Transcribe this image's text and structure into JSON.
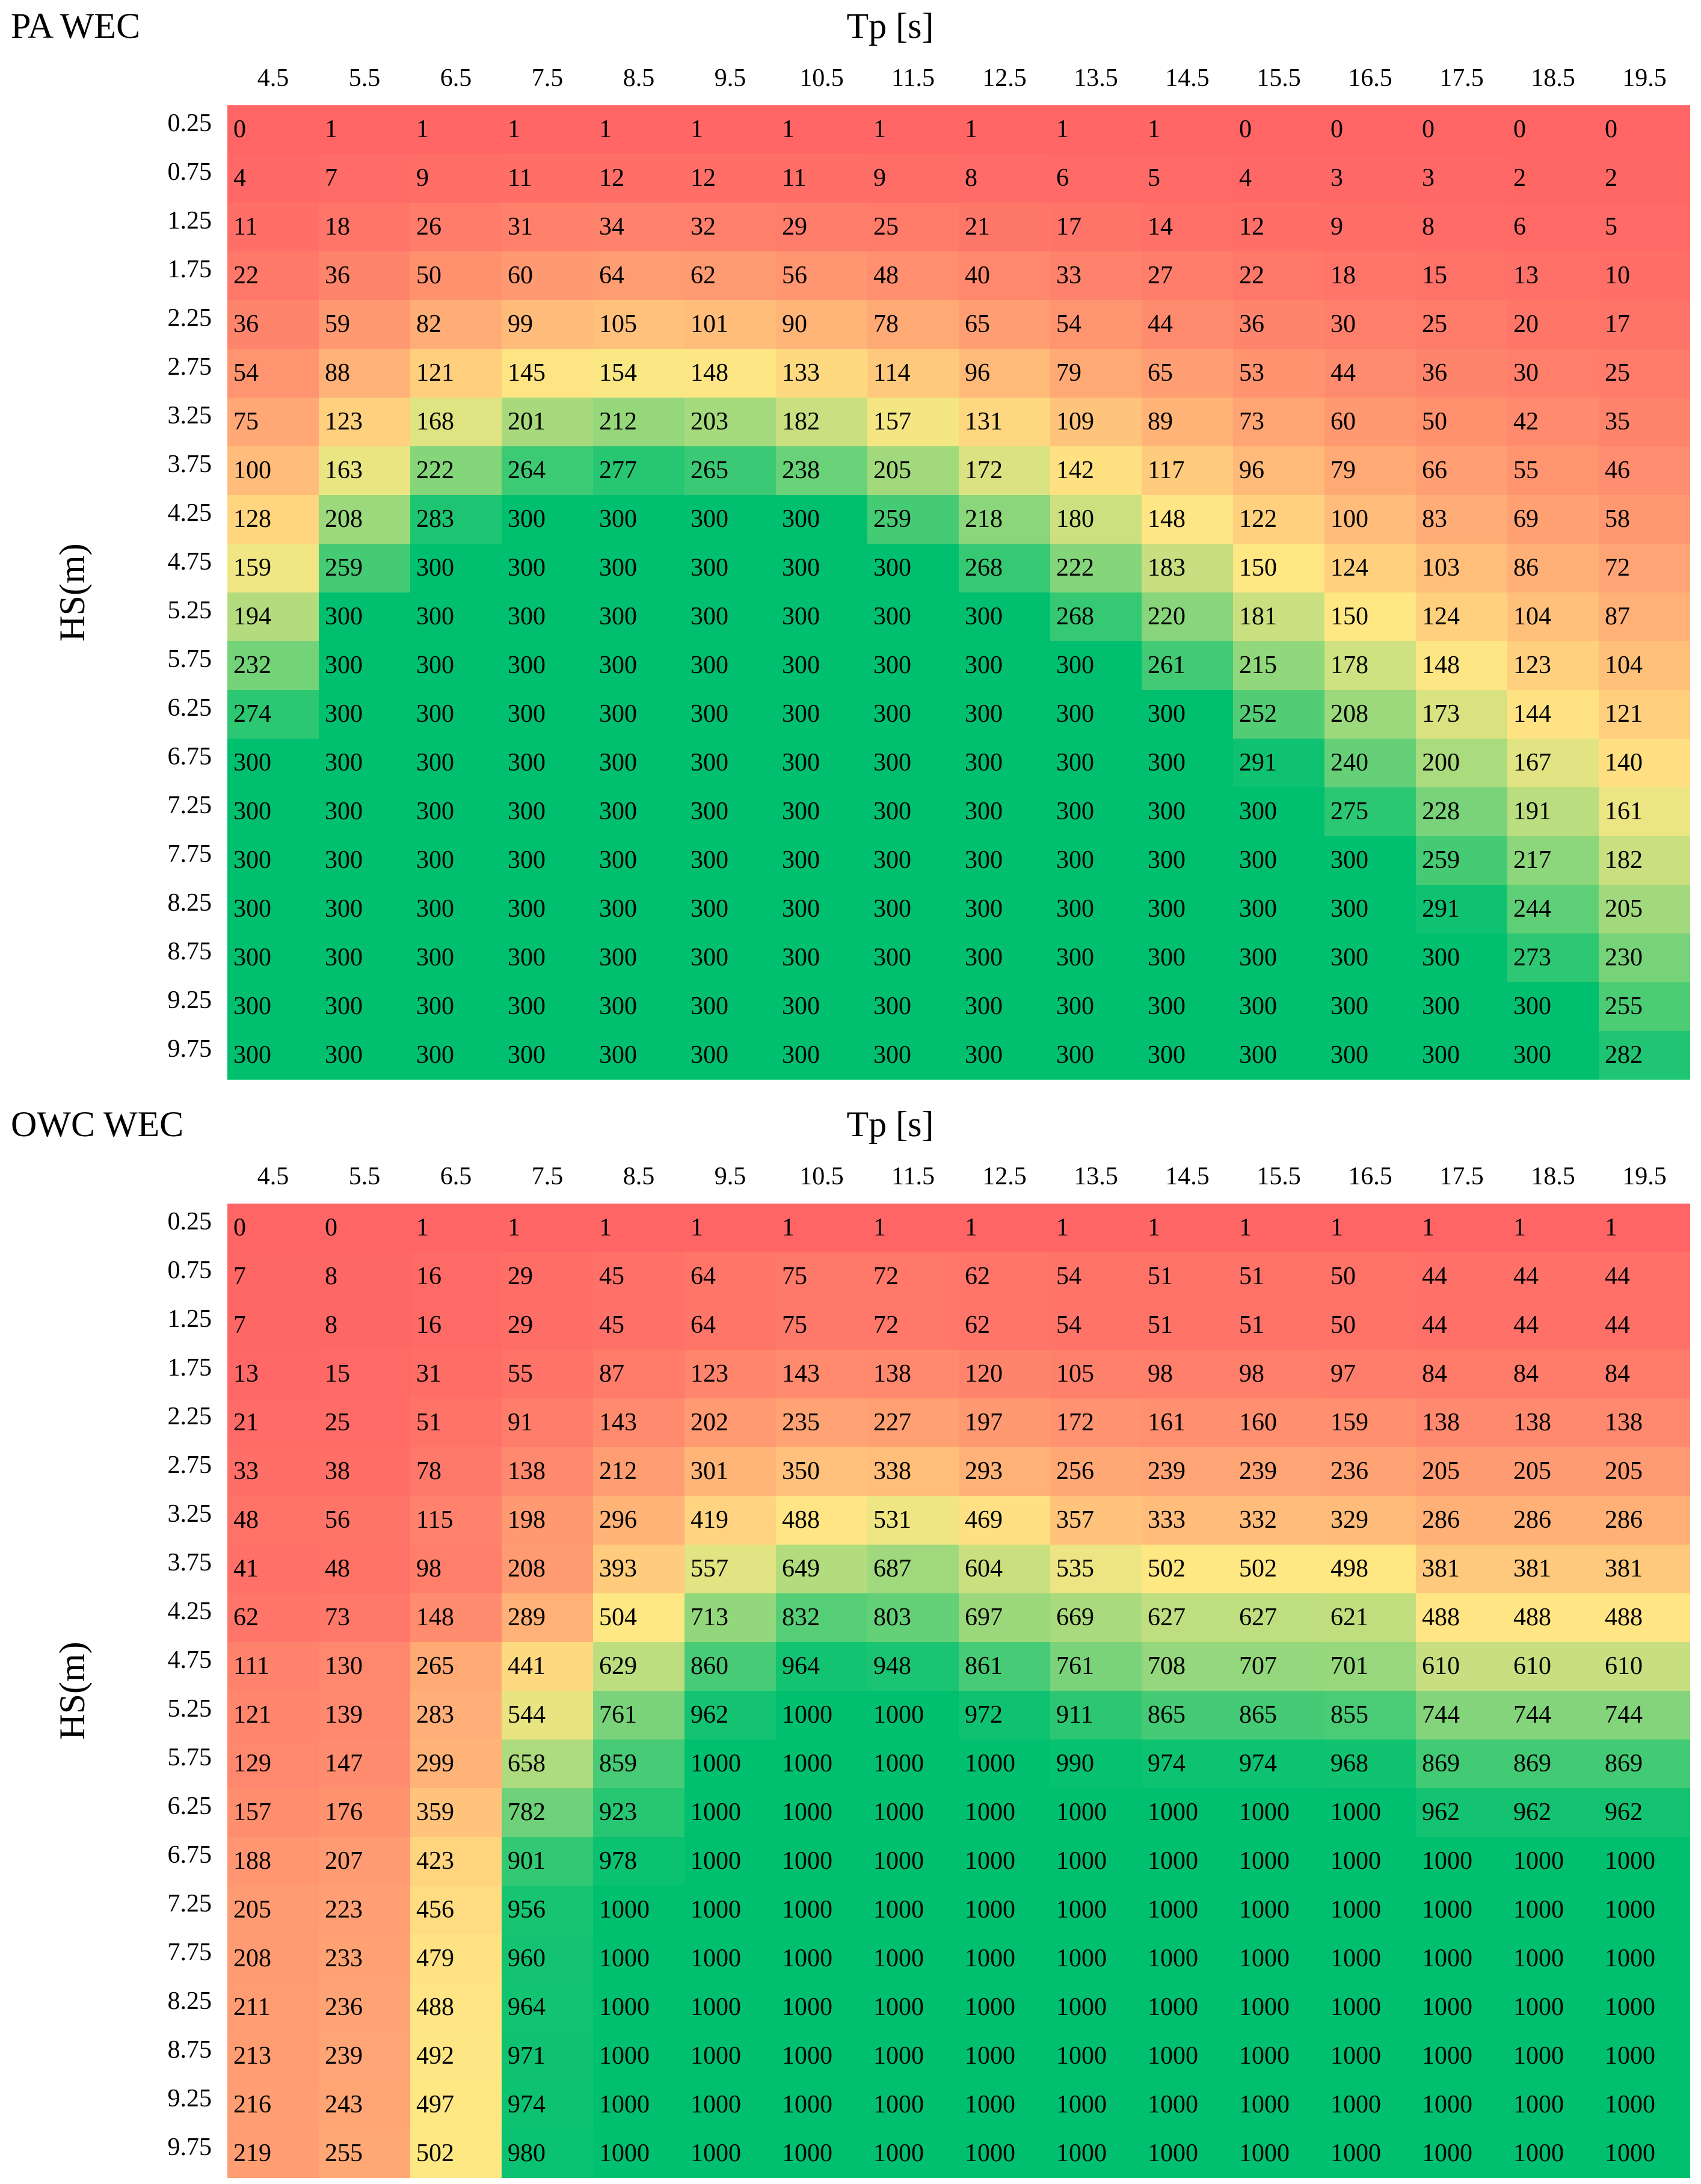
{
  "chart_data": [
    {
      "type": "heatmap",
      "title": "PA WEC",
      "xlabel": "Tp [s]",
      "ylabel": "HS(m)",
      "x": [
        "4.5",
        "5.5",
        "6.5",
        "7.5",
        "8.5",
        "9.5",
        "10.5",
        "11.5",
        "12.5",
        "13.5",
        "14.5",
        "15.5",
        "16.5",
        "17.5",
        "18.5",
        "19.5"
      ],
      "y": [
        "0.25",
        "0.75",
        "1.25",
        "1.75",
        "2.25",
        "2.75",
        "3.25",
        "3.75",
        "4.25",
        "4.75",
        "5.25",
        "5.75",
        "6.25",
        "6.75",
        "7.25",
        "7.75",
        "8.25",
        "8.75",
        "9.25",
        "9.75"
      ],
      "max_value": 300,
      "values": [
        [
          0,
          1,
          1,
          1,
          1,
          1,
          1,
          1,
          1,
          1,
          1,
          0,
          0,
          0,
          0,
          0
        ],
        [
          4,
          7,
          9,
          11,
          12,
          12,
          11,
          9,
          8,
          6,
          5,
          4,
          3,
          3,
          2,
          2
        ],
        [
          11,
          18,
          26,
          31,
          34,
          32,
          29,
          25,
          21,
          17,
          14,
          12,
          9,
          8,
          6,
          5
        ],
        [
          22,
          36,
          50,
          60,
          64,
          62,
          56,
          48,
          40,
          33,
          27,
          22,
          18,
          15,
          13,
          10
        ],
        [
          36,
          59,
          82,
          99,
          105,
          101,
          90,
          78,
          65,
          54,
          44,
          36,
          30,
          25,
          20,
          17
        ],
        [
          54,
          88,
          121,
          145,
          154,
          148,
          133,
          114,
          96,
          79,
          65,
          53,
          44,
          36,
          30,
          25
        ],
        [
          75,
          123,
          168,
          201,
          212,
          203,
          182,
          157,
          131,
          109,
          89,
          73,
          60,
          50,
          42,
          35
        ],
        [
          100,
          163,
          222,
          264,
          277,
          265,
          238,
          205,
          172,
          142,
          117,
          96,
          79,
          66,
          55,
          46
        ],
        [
          128,
          208,
          283,
          300,
          300,
          300,
          300,
          259,
          218,
          180,
          148,
          122,
          100,
          83,
          69,
          58
        ],
        [
          159,
          259,
          300,
          300,
          300,
          300,
          300,
          300,
          268,
          222,
          183,
          150,
          124,
          103,
          86,
          72
        ],
        [
          194,
          300,
          300,
          300,
          300,
          300,
          300,
          300,
          300,
          268,
          220,
          181,
          150,
          124,
          104,
          87
        ],
        [
          232,
          300,
          300,
          300,
          300,
          300,
          300,
          300,
          300,
          300,
          261,
          215,
          178,
          148,
          123,
          104
        ],
        [
          274,
          300,
          300,
          300,
          300,
          300,
          300,
          300,
          300,
          300,
          300,
          252,
          208,
          173,
          144,
          121
        ],
        [
          300,
          300,
          300,
          300,
          300,
          300,
          300,
          300,
          300,
          300,
          300,
          291,
          240,
          200,
          167,
          140
        ],
        [
          300,
          300,
          300,
          300,
          300,
          300,
          300,
          300,
          300,
          300,
          300,
          300,
          275,
          228,
          191,
          161
        ],
        [
          300,
          300,
          300,
          300,
          300,
          300,
          300,
          300,
          300,
          300,
          300,
          300,
          300,
          259,
          217,
          182
        ],
        [
          300,
          300,
          300,
          300,
          300,
          300,
          300,
          300,
          300,
          300,
          300,
          300,
          300,
          291,
          244,
          205
        ],
        [
          300,
          300,
          300,
          300,
          300,
          300,
          300,
          300,
          300,
          300,
          300,
          300,
          300,
          300,
          273,
          230
        ],
        [
          300,
          300,
          300,
          300,
          300,
          300,
          300,
          300,
          300,
          300,
          300,
          300,
          300,
          300,
          300,
          255
        ],
        [
          300,
          300,
          300,
          300,
          300,
          300,
          300,
          300,
          300,
          300,
          300,
          300,
          300,
          300,
          300,
          282
        ]
      ]
    },
    {
      "type": "heatmap",
      "title": "OWC WEC",
      "xlabel": "Tp [s]",
      "ylabel": "HS(m)",
      "x": [
        "4.5",
        "5.5",
        "6.5",
        "7.5",
        "8.5",
        "9.5",
        "10.5",
        "11.5",
        "12.5",
        "13.5",
        "14.5",
        "15.5",
        "16.5",
        "17.5",
        "18.5",
        "19.5"
      ],
      "y": [
        "0.25",
        "0.75",
        "1.25",
        "1.75",
        "2.25",
        "2.75",
        "3.25",
        "3.75",
        "4.25",
        "4.75",
        "5.25",
        "5.75",
        "6.25",
        "6.75",
        "7.25",
        "7.75",
        "8.25",
        "8.75",
        "9.25",
        "9.75"
      ],
      "max_value": 1000,
      "values": [
        [
          0,
          0,
          1,
          1,
          1,
          1,
          1,
          1,
          1,
          1,
          1,
          1,
          1,
          1,
          1,
          1
        ],
        [
          7,
          8,
          16,
          29,
          45,
          64,
          75,
          72,
          62,
          54,
          51,
          51,
          50,
          44,
          44,
          44
        ],
        [
          7,
          8,
          16,
          29,
          45,
          64,
          75,
          72,
          62,
          54,
          51,
          51,
          50,
          44,
          44,
          44
        ],
        [
          13,
          15,
          31,
          55,
          87,
          123,
          143,
          138,
          120,
          105,
          98,
          98,
          97,
          84,
          84,
          84
        ],
        [
          21,
          25,
          51,
          91,
          143,
          202,
          235,
          227,
          197,
          172,
          161,
          160,
          159,
          138,
          138,
          138
        ],
        [
          33,
          38,
          78,
          138,
          212,
          301,
          350,
          338,
          293,
          256,
          239,
          239,
          236,
          205,
          205,
          205
        ],
        [
          48,
          56,
          115,
          198,
          296,
          419,
          488,
          531,
          469,
          357,
          333,
          332,
          329,
          286,
          286,
          286
        ],
        [
          41,
          48,
          98,
          208,
          393,
          557,
          649,
          687,
          604,
          535,
          502,
          502,
          498,
          381,
          381,
          381
        ],
        [
          62,
          73,
          148,
          289,
          504,
          713,
          832,
          803,
          697,
          669,
          627,
          627,
          621,
          488,
          488,
          488
        ],
        [
          111,
          130,
          265,
          441,
          629,
          860,
          964,
          948,
          861,
          761,
          708,
          707,
          701,
          610,
          610,
          610
        ],
        [
          121,
          139,
          283,
          544,
          761,
          962,
          1000,
          1000,
          972,
          911,
          865,
          865,
          855,
          744,
          744,
          744
        ],
        [
          129,
          147,
          299,
          658,
          859,
          1000,
          1000,
          1000,
          1000,
          990,
          974,
          974,
          968,
          869,
          869,
          869
        ],
        [
          157,
          176,
          359,
          782,
          923,
          1000,
          1000,
          1000,
          1000,
          1000,
          1000,
          1000,
          1000,
          962,
          962,
          962
        ],
        [
          188,
          207,
          423,
          901,
          978,
          1000,
          1000,
          1000,
          1000,
          1000,
          1000,
          1000,
          1000,
          1000,
          1000,
          1000
        ],
        [
          205,
          223,
          456,
          956,
          1000,
          1000,
          1000,
          1000,
          1000,
          1000,
          1000,
          1000,
          1000,
          1000,
          1000,
          1000
        ],
        [
          208,
          233,
          479,
          960,
          1000,
          1000,
          1000,
          1000,
          1000,
          1000,
          1000,
          1000,
          1000,
          1000,
          1000,
          1000
        ],
        [
          211,
          236,
          488,
          964,
          1000,
          1000,
          1000,
          1000,
          1000,
          1000,
          1000,
          1000,
          1000,
          1000,
          1000,
          1000
        ],
        [
          213,
          239,
          492,
          971,
          1000,
          1000,
          1000,
          1000,
          1000,
          1000,
          1000,
          1000,
          1000,
          1000,
          1000,
          1000
        ],
        [
          216,
          243,
          497,
          974,
          1000,
          1000,
          1000,
          1000,
          1000,
          1000,
          1000,
          1000,
          1000,
          1000,
          1000,
          1000
        ],
        [
          219,
          255,
          502,
          980,
          1000,
          1000,
          1000,
          1000,
          1000,
          1000,
          1000,
          1000,
          1000,
          1000,
          1000,
          1000
        ]
      ]
    }
  ],
  "colors": {
    "low": "#ff6565",
    "mid": "#ffe884",
    "high": "#00c070"
  }
}
